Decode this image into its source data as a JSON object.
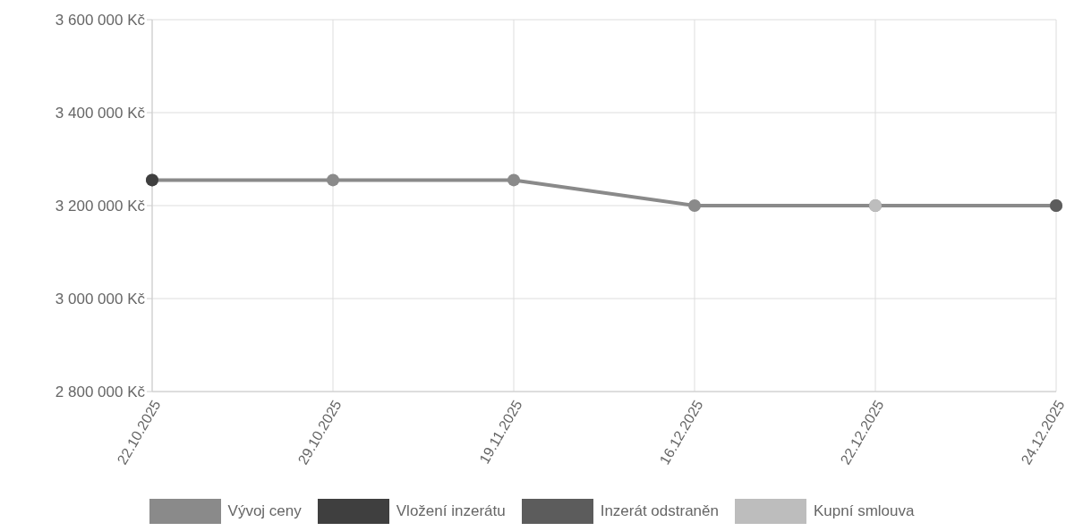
{
  "chart_data": {
    "type": "line",
    "categories": [
      "22.10.2025",
      "29.10.2025",
      "19.11.2025",
      "16.12.2025",
      "22.12.2025",
      "24.12.2025"
    ],
    "series": [
      {
        "name": "Vývoj ceny",
        "color": "#8a8a8a",
        "values": [
          3255000,
          3255000,
          3255000,
          3200000,
          3200000,
          3200000
        ]
      },
      {
        "name": "Vložení inzerátu",
        "type": "scatter",
        "color": "#3f3f3f",
        "values": [
          3255000,
          null,
          null,
          null,
          null,
          null
        ]
      },
      {
        "name": "Inzerát odstraněn",
        "type": "scatter",
        "color": "#5c5c5c",
        "values": [
          null,
          null,
          null,
          null,
          null,
          3200000
        ]
      },
      {
        "name": "Kupní smlouva",
        "type": "scatter",
        "color": "#bdbdbd",
        "values": [
          null,
          null,
          null,
          null,
          3200000,
          null
        ]
      }
    ],
    "ylim": [
      2800000,
      3600000
    ],
    "yticks": [
      {
        "value": 2800000,
        "label": "2 800 000 Kč"
      },
      {
        "value": 3000000,
        "label": "3 000 000 Kč"
      },
      {
        "value": 3200000,
        "label": "3 200 000 Kč"
      },
      {
        "value": 3400000,
        "label": "3 400 000 Kč"
      },
      {
        "value": 3600000,
        "label": "3 600 000 Kč"
      }
    ],
    "grid": true,
    "legend": "bottom",
    "marker": "circle"
  }
}
